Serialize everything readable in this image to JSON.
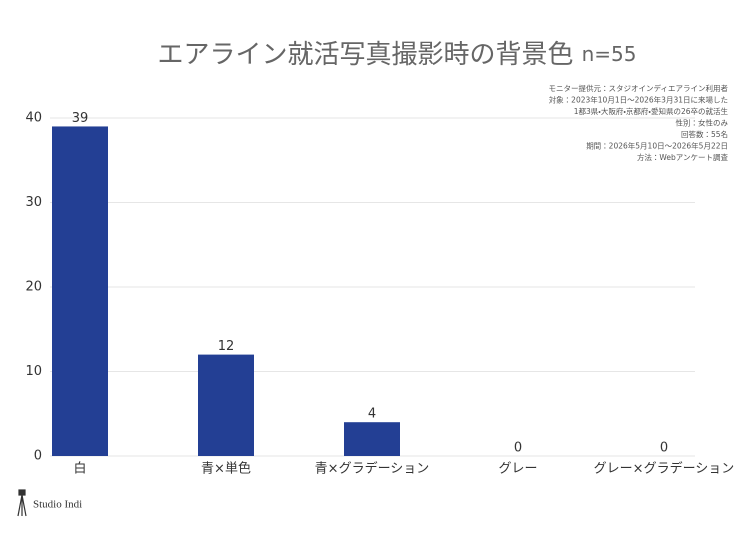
{
  "chart_data": {
    "type": "bar",
    "title": "エアライン就活写真撮影時の背景色",
    "sample_size": "n=55",
    "notes": [
      "モニター提供元：スタジオインディエアライン利用者",
      "対象：2023年10月1日〜2026年3月31日に来場した",
      "1都3県・大阪府・京都府・愛知県の26卒の就活生",
      "性別：女性のみ",
      "回答数：55名",
      "期間：2026年5月10日〜2026年5月22日",
      "方法：Webアンケート調査"
    ],
    "brand": "Studio Indi",
    "categories": [
      "白",
      "青×単色",
      "青×グラデーション",
      "グレー",
      "グレー×グラデーション"
    ],
    "values": [
      39,
      12,
      4,
      0,
      0
    ],
    "color": "#233f94",
    "ylim": [
      0,
      40
    ],
    "yticks": [
      0,
      10,
      20,
      30,
      40
    ],
    "grid": true
  }
}
